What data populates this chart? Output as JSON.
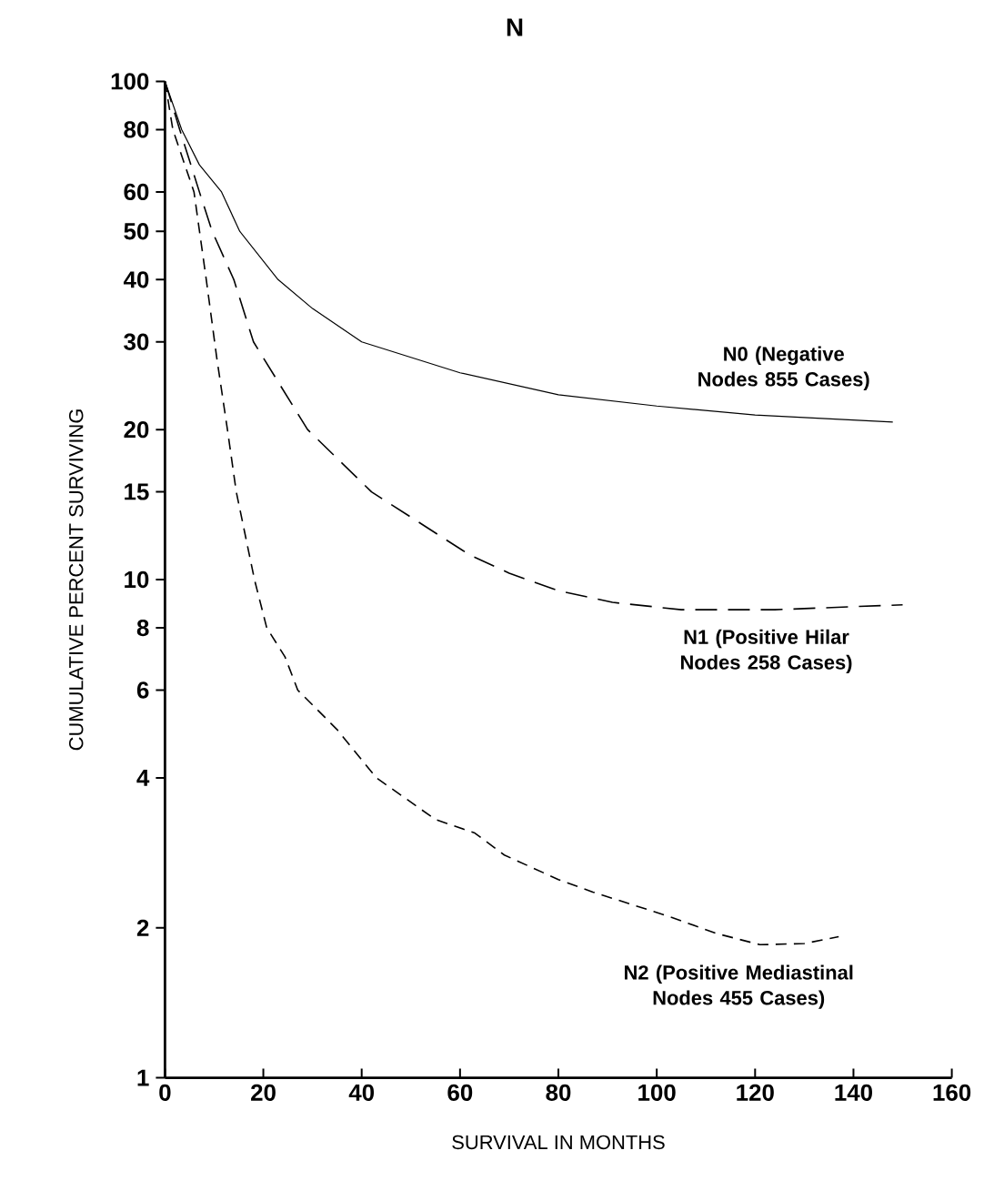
{
  "chart_data": {
    "type": "line",
    "title": "N",
    "xlabel": "SURVIVAL IN MONTHS",
    "ylabel": "CUMULATIVE PERCENT SURVIVING",
    "log": "y",
    "grid": false,
    "marker": "none",
    "xlim": [
      0,
      160
    ],
    "xticks": [
      0,
      20,
      40,
      60,
      80,
      100,
      120,
      140,
      160
    ],
    "ylim": [
      1,
      100
    ],
    "yticks": [
      1,
      2,
      4,
      6,
      8,
      10,
      15,
      20,
      30,
      40,
      50,
      60,
      80,
      100
    ],
    "series": [
      {
        "name": "N0 (Negative Nodes 855 Cases)",
        "color": "#000000",
        "line_style": "solid",
        "x": [
          0,
          3.4,
          7,
          11.5,
          15.2,
          23,
          30,
          40,
          60,
          80,
          100,
          120,
          148
        ],
        "values": [
          100,
          80,
          68,
          60,
          50,
          40,
          35,
          30,
          26,
          23.5,
          22.3,
          21.4,
          20.7
        ]
      },
      {
        "name": "N1 (Positive Hilar Nodes 258 Cases)",
        "color": "#000000",
        "line_style": "dashed",
        "x": [
          0,
          3,
          7,
          9.6,
          14,
          18,
          29,
          42,
          62,
          70,
          80,
          91,
          105,
          124,
          150
        ],
        "values": [
          100,
          80,
          60,
          50,
          40,
          30,
          20,
          15,
          11.2,
          10.3,
          9.5,
          9,
          8.7,
          8.7,
          8.9
        ]
      },
      {
        "name": "N2 (Positive Mediastinal Nodes 455 Cases)",
        "color": "#000000",
        "line_style": "dashed",
        "x": [
          0,
          1.6,
          5.9,
          8.4,
          10.5,
          12.7,
          14.5,
          18.2,
          20.7,
          24.4,
          27,
          35,
          43,
          55,
          63,
          69,
          80,
          87,
          103,
          112,
          121,
          130,
          137
        ],
        "values": [
          100,
          80,
          60,
          40,
          28,
          20,
          15,
          10,
          8,
          7,
          6,
          5,
          4,
          3.3,
          3.1,
          2.8,
          2.5,
          2.36,
          2.1,
          1.95,
          1.85,
          1.86,
          1.92
        ]
      }
    ]
  }
}
